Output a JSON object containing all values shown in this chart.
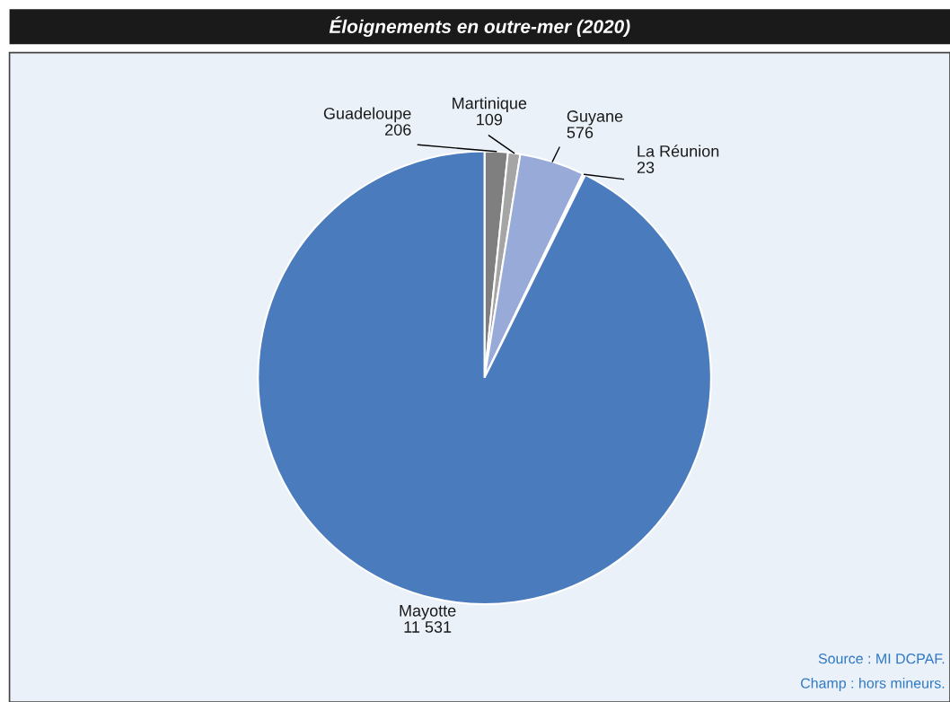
{
  "chart_data": {
    "type": "pie",
    "title": "Éloignements en outre-mer (2020)",
    "categories": [
      "Guadeloupe",
      "Martinique",
      "Guyane",
      "La Réunion",
      "Mayotte"
    ],
    "values": [
      206,
      109,
      576,
      23,
      11531
    ],
    "colors": [
      "#7f7f7f",
      "#a5a5a5",
      "#98aad8",
      "#ffffff",
      "#4a7bbd"
    ],
    "data_labels": true,
    "annotations": [
      "Source : MI DCPAF.",
      "Champ : hors mineurs."
    ]
  }
}
